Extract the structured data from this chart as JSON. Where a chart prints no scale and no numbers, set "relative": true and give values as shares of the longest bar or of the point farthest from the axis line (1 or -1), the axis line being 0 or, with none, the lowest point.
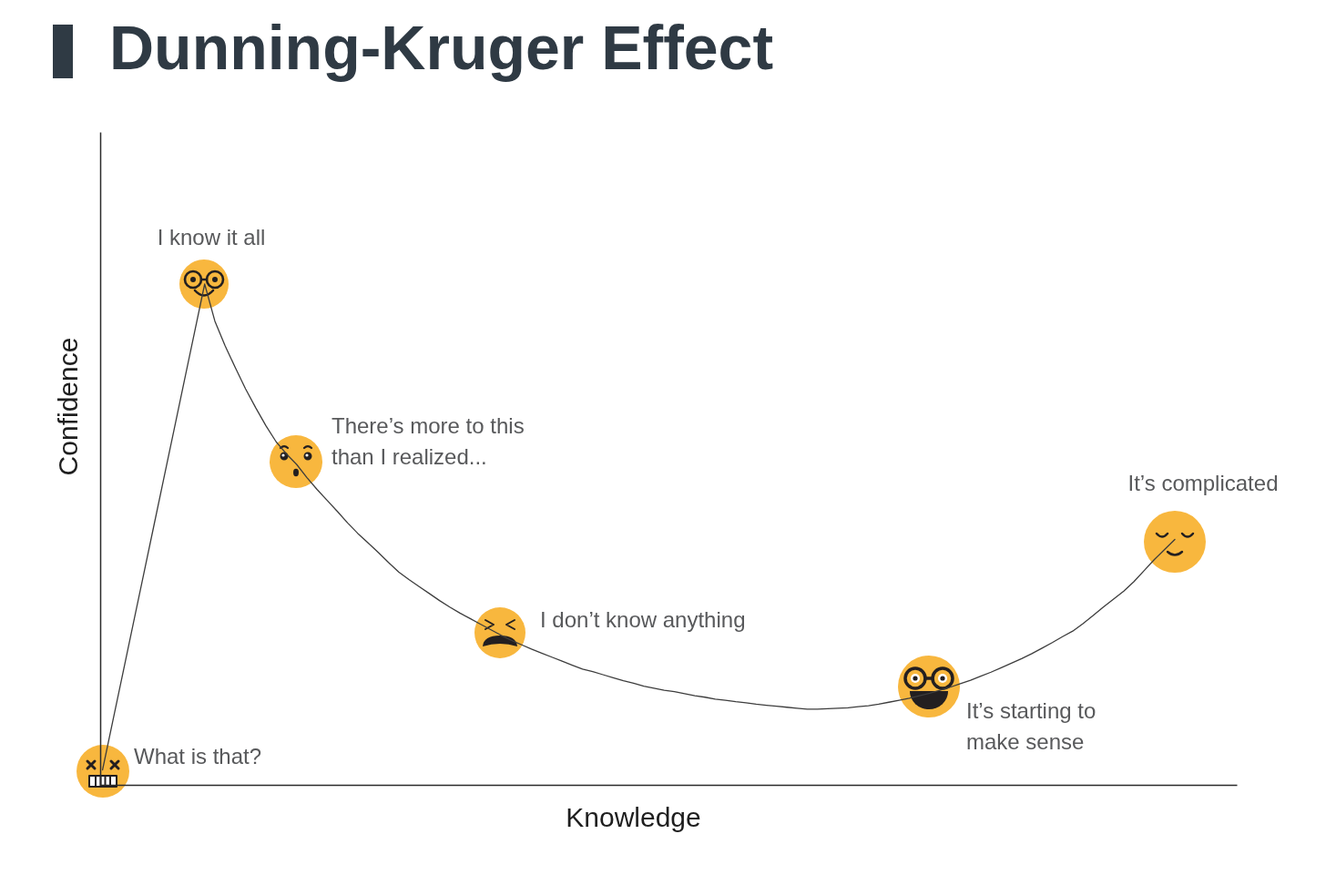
{
  "chart_data": {
    "type": "line",
    "title": "Dunning-Kruger Effect",
    "xlabel": "Knowledge",
    "ylabel": "Confidence",
    "relative": true,
    "categories": [
      null,
      null,
      null,
      null,
      null,
      null,
      null,
      null,
      null,
      null,
      null,
      null,
      null,
      null,
      null,
      null,
      null,
      null,
      null,
      null,
      null,
      null,
      null,
      null,
      null,
      null,
      null,
      null,
      null,
      null,
      null,
      null,
      null,
      null,
      null,
      null,
      null,
      null,
      null,
      null,
      null,
      null,
      null,
      null,
      null,
      null,
      null,
      null,
      null,
      null,
      null,
      null,
      null,
      null,
      null,
      null,
      null,
      null,
      null,
      null,
      null,
      null,
      null,
      null,
      null,
      null,
      null,
      null,
      null,
      null,
      null,
      null,
      null,
      null,
      null,
      null,
      null,
      null,
      null,
      null,
      null,
      null,
      null,
      null,
      null,
      null,
      null,
      null,
      null,
      null,
      null,
      null,
      null,
      null,
      null,
      null,
      null,
      null,
      null,
      null,
      null,
      null,
      null,
      null,
      null,
      null
    ],
    "color": "#3d3d3d",
    "values": [
      0.03,
      0.127,
      0.224,
      0.321,
      0.418,
      0.515,
      0.612,
      0.709,
      0.806,
      0.903,
      1,
      0.926,
      0.877,
      0.833,
      0.791,
      0.753,
      0.717,
      0.685,
      0.661,
      0.64,
      0.614,
      0.59,
      0.568,
      0.546,
      0.523,
      0.502,
      0.483,
      0.464,
      0.444,
      0.425,
      0.41,
      0.396,
      0.382,
      0.368,
      0.355,
      0.343,
      0.332,
      0.321,
      0.31,
      0.299,
      0.289,
      0.28,
      0.271,
      0.263,
      0.255,
      0.247,
      0.239,
      0.231,
      0.226,
      0.22,
      0.214,
      0.208,
      0.203,
      0.197,
      0.193,
      0.189,
      0.186,
      0.182,
      0.178,
      0.175,
      0.171,
      0.169,
      0.166,
      0.164,
      0.161,
      0.159,
      0.157,
      0.155,
      0.153,
      0.151,
      0.151,
      0.152,
      0.153,
      0.154,
      0.156,
      0.158,
      0.161,
      0.165,
      0.169,
      0.173,
      0.178,
      0.183,
      0.189,
      0.195,
      0.202,
      0.209,
      0.217,
      0.225,
      0.234,
      0.243,
      0.252,
      0.262,
      0.273,
      0.284,
      0.296,
      0.307,
      0.322,
      0.338,
      0.355,
      0.371,
      0.387,
      0.406,
      0.428,
      0.45,
      0.47,
      0.49
    ],
    "annotations": [
      "What is that?",
      "I know it all",
      "There’s more to this\nthan I realized...",
      "I don’t know anything",
      "It’s starting to\nmake sense",
      "It’s complicated"
    ]
  }
}
